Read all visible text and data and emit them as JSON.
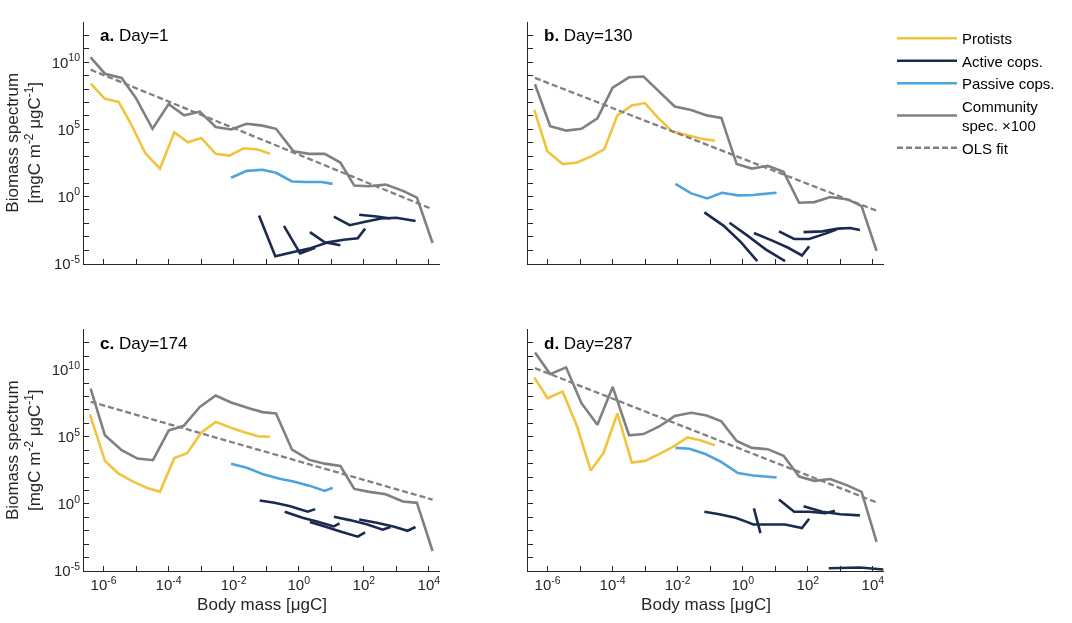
{
  "chart_data": [
    {
      "type": "line",
      "title": "a. Day=1",
      "ylabel": "Biomass spectrum\n[mgC m$^{-2}$ μgC$^{-1}$]",
      "log": "xy",
      "tick_labels": "y",
      "xlim": [
        2.5e-07,
        22000
      ],
      "ylim": [
        1e-05,
        10000000000000.0
      ],
      "xticks": [
        {
          "value": 1e-06,
          "label": "10$^{-6}$"
        },
        {
          "value": 1e-05,
          "label": null
        },
        {
          "value": 0.0001,
          "label": "10$^{-4}$"
        },
        {
          "value": 0.001,
          "label": null
        },
        {
          "value": 0.01,
          "label": "10$^{-2}$"
        },
        {
          "value": 0.1,
          "label": null
        },
        {
          "value": 1,
          "label": "10$^{0}$"
        },
        {
          "value": 10,
          "label": null
        },
        {
          "value": 100,
          "label": "10$^{2}$"
        },
        {
          "value": 1000,
          "label": null
        },
        {
          "value": 10000,
          "label": "10$^{4}$"
        }
      ],
      "yticks": [
        {
          "value": 1e-05,
          "label": "10$^{-5}$"
        },
        {
          "value": 0.0001,
          "label": null
        },
        {
          "value": 0.001,
          "label": null
        },
        {
          "value": 0.01,
          "label": null
        },
        {
          "value": 0.1,
          "label": null
        },
        {
          "value": 1,
          "label": "10$^{0}$"
        },
        {
          "value": 10,
          "label": null
        },
        {
          "value": 100,
          "label": null
        },
        {
          "value": 1000,
          "label": null
        },
        {
          "value": 10000,
          "label": null
        },
        {
          "value": 100000,
          "label": "10$^{5}$"
        },
        {
          "value": 1000000.0,
          "label": null
        },
        {
          "value": 10000000.0,
          "label": null
        },
        {
          "value": 100000000.0,
          "label": null
        },
        {
          "value": 1000000000.0,
          "label": null
        },
        {
          "value": 10000000000.0,
          "label": "10$^{10}$"
        },
        {
          "value": 100000000000.0,
          "label": null
        },
        {
          "value": 1000000000000.0,
          "label": null
        }
      ],
      "series": [
        {
          "color": "#808080",
          "x": [
            4e-07,
            1.1e-06,
            3.6e-06,
            9.8e-06,
            3.2e-05,
            0.0001,
            0.0003,
            0.00091,
            0.0028,
            0.0083,
            0.025,
            0.076,
            0.2,
            0.69,
            2.1,
            6.3,
            19,
            51,
            140,
            470,
            1600,
            4300,
            13000
          ],
          "values": [
            23000000000.0,
            1400000000.0,
            680000000.0,
            22000000.0,
            110000.0,
            7600000.0,
            1100000.0,
            2100000.0,
            150000.0,
            98000.0,
            260000.0,
            190000.0,
            110000.0,
            2300,
            1500,
            1500,
            340,
            6.5,
            5.8,
            7.6,
            2.6,
            0.81,
            0.00034
          ]
        },
        {
          "color": "#808080",
          "line_style": "dashed",
          "x": [
            4e-07,
            12000
          ],
          "values": [
            2800000000.0,
            0.12
          ]
        },
        {
          "color": "#f0c43c",
          "x": [
            4e-07,
            1.1e-06,
            2.9e-06,
            6.9e-06,
            1.9e-05,
            5.4e-05,
            0.00015,
            0.00039,
            0.001,
            0.0028,
            0.0074,
            0.02,
            0.055,
            0.13
          ],
          "values": [
            260000000.0,
            19000000.0,
            11000000.0,
            260000.0,
            1700,
            120,
            60000.0,
            11000.0,
            23000.0,
            1500,
            1100,
            3800,
            3200,
            1500
          ]
        },
        {
          "color": "#4da3db",
          "x": [
            0.0083,
            0.025,
            0.076,
            0.2,
            0.62,
            1.7,
            5.0,
            11
          ],
          "values": [
            25,
            81,
            98,
            58,
            13,
            12,
            12,
            8.7
          ]
        },
        {
          "color": "#1b2a50",
          "x": [
            0.06,
            0.19,
            0.69,
            2.1,
            7.9,
            24,
            65,
            110
          ],
          "values": [
            0.038,
            3.5e-05,
            7.2e-05,
            0.00013,
            0.00038,
            0.0006,
            0.00076,
            0.004
          ]
        },
        {
          "color": "#1b2a50",
          "x": [
            0.35,
            1.1,
            3.2
          ],
          "values": [
            0.0065,
            5.8e-05,
            0.00015
          ]
        },
        {
          "color": "#1b2a50",
          "x": [
            2.2,
            6.3,
            19
          ],
          "values": [
            0.0022,
            0.00038,
            0.00023
          ]
        },
        {
          "color": "#1b2a50",
          "x": [
            12,
            37,
            110,
            340,
            1000,
            3900
          ],
          "values": [
            0.032,
            0.0072,
            0.013,
            0.023,
            0.026,
            0.015
          ]
        },
        {
          "color": "#1b2a50",
          "x": [
            72,
            250,
            660
          ],
          "values": [
            0.043,
            0.032,
            0.023
          ]
        }
      ]
    },
    {
      "type": "line",
      "title": "b. Day=130",
      "log": "xy",
      "tick_labels": false,
      "legend": "top right",
      "xlim": [
        2.5e-07,
        22000
      ],
      "ylim": [
        1e-05,
        10000000000000.0
      ],
      "xticks": [
        {
          "value": 1e-06,
          "label": "10$^{-6}$"
        },
        {
          "value": 1e-05,
          "label": null
        },
        {
          "value": 0.0001,
          "label": "10$^{-4}$"
        },
        {
          "value": 0.001,
          "label": null
        },
        {
          "value": 0.01,
          "label": "10$^{-2}$"
        },
        {
          "value": 0.1,
          "label": null
        },
        {
          "value": 1,
          "label": "10$^{0}$"
        },
        {
          "value": 10,
          "label": null
        },
        {
          "value": 100,
          "label": "10$^{2}$"
        },
        {
          "value": 1000,
          "label": null
        },
        {
          "value": 10000,
          "label": "10$^{4}$"
        }
      ],
      "yticks": [
        {
          "value": 1e-05,
          "label": "10$^{-5}$"
        },
        {
          "value": 0.0001,
          "label": null
        },
        {
          "value": 0.001,
          "label": null
        },
        {
          "value": 0.01,
          "label": null
        },
        {
          "value": 0.1,
          "label": null
        },
        {
          "value": 1,
          "label": "10$^{0}$"
        },
        {
          "value": 10,
          "label": null
        },
        {
          "value": 100,
          "label": null
        },
        {
          "value": 1000,
          "label": null
        },
        {
          "value": 10000,
          "label": null
        },
        {
          "value": 100000,
          "label": "10$^{5}$"
        },
        {
          "value": 1000000.0,
          "label": null
        },
        {
          "value": 10000000.0,
          "label": null
        },
        {
          "value": 100000000.0,
          "label": null
        },
        {
          "value": 1000000000.0,
          "label": null
        },
        {
          "value": 10000000000.0,
          "label": "10$^{10}$"
        },
        {
          "value": 100000000000.0,
          "label": null
        },
        {
          "value": 1000000000000.0,
          "label": null
        }
      ],
      "series": [
        {
          "name": "Protists",
          "color": "#f0c43c",
          "x": [
            3.9e-07,
            9.8e-07,
            2.9e-06,
            8.1e-06,
            2.2e-05,
            5.5e-05,
            0.00014,
            0.00039,
            0.00098,
            0.0025,
            0.0069,
            0.019,
            0.05,
            0.14
          ],
          "values": [
            2800000.0,
            2300,
            260,
            340,
            980,
            3200,
            1100000.0,
            6000000.0,
            9100000.0,
            720000.0,
            68000.0,
            38000.0,
            21000.0,
            14000.0
          ]
        },
        {
          "name": "Active cops.",
          "color": "#1b2a50",
          "x": [
            0.066,
            0.26,
            0.89,
            2.8
          ],
          "values": [
            0.065,
            0.0065,
            0.00038,
            1.5e-05
          ]
        },
        {
          "color": "#1b2a50",
          "x": [
            0.39,
            1.4,
            5.2,
            20
          ],
          "values": [
            0.011,
            0.0012,
            0.00011,
            1.5e-05
          ]
        },
        {
          "color": "#1b2a50",
          "x": [
            2.2,
            8.1,
            25,
            66,
            110
          ],
          "values": [
            0.0019,
            0.00051,
            0.00015,
            4e-05,
            0.00019
          ]
        },
        {
          "color": "#1b2a50",
          "x": [
            13,
            38,
            110,
            350,
            760
          ],
          "values": [
            0.0025,
            0.00068,
            0.00068,
            0.0017,
            0.0035
          ]
        },
        {
          "color": "#1b2a50",
          "x": [
            74,
            280,
            850,
            2000,
            4000
          ],
          "values": [
            0.0022,
            0.0025,
            0.004,
            0.0045,
            0.0032
          ]
        },
        {
          "name": "Passive cops.",
          "color": "#4da3db",
          "x": [
            0.0085,
            0.026,
            0.081,
            0.23,
            0.71,
            2.1,
            11
          ],
          "values": [
            8.7,
            1.7,
            0.72,
            1.9,
            1.2,
            1.3,
            1.9
          ]
        },
        {
          "name": "Community\nspec. ×100",
          "color": "#808080",
          "x": [
            4.1e-07,
            1.2e-06,
            3.7e-06,
            1.1e-05,
            3.4e-05,
            0.0001,
            0.00032,
            0.00089,
            0.0027,
            0.0081,
            0.026,
            0.078,
            0.22,
            0.65,
            1.9,
            5.9,
            18,
            54,
            160,
            490,
            1700,
            4500,
            13000
          ],
          "values": [
            230000000.0,
            170000.0,
            81000.0,
            110000.0,
            650000.0,
            130000000.0,
            760000000.0,
            870000000.0,
            65000000.0,
            5100000.0,
            2800000.0,
            1100000.0,
            720000.0,
            260,
            120,
            190,
            68,
            0.34,
            0.38,
            0.91,
            0.6,
            0.19,
            8.7e-05
          ]
        },
        {
          "name": "OLS fit",
          "color": "#808080",
          "line_style": "dashed",
          "x": [
            4.1e-07,
            13000
          ],
          "values": [
            680000000.0,
            0.087
          ]
        }
      ]
    },
    {
      "type": "line",
      "title": "c. Day=174",
      "xlabel": "Body mass [μgC]",
      "ylabel": "Biomass spectrum\n[mgC m$^{-2}$ μgC$^{-1}$]",
      "log": "xy",
      "xlim": [
        2.5e-07,
        22000
      ],
      "ylim": [
        1e-05,
        10000000000000.0
      ],
      "xticks": [
        {
          "value": 1e-06,
          "label": "10$^{-6}$"
        },
        {
          "value": 1e-05,
          "label": null
        },
        {
          "value": 0.0001,
          "label": "10$^{-4}$"
        },
        {
          "value": 0.001,
          "label": null
        },
        {
          "value": 0.01,
          "label": "10$^{-2}$"
        },
        {
          "value": 0.1,
          "label": null
        },
        {
          "value": 1,
          "label": "10$^{0}$"
        },
        {
          "value": 10,
          "label": null
        },
        {
          "value": 100,
          "label": "10$^{2}$"
        },
        {
          "value": 1000,
          "label": null
        },
        {
          "value": 10000,
          "label": "10$^{4}$"
        }
      ],
      "yticks": [
        {
          "value": 1e-05,
          "label": "10$^{-5}$"
        },
        {
          "value": 0.0001,
          "label": null
        },
        {
          "value": 0.001,
          "label": null
        },
        {
          "value": 0.01,
          "label": null
        },
        {
          "value": 0.1,
          "label": null
        },
        {
          "value": 1,
          "label": "10$^{0}$"
        },
        {
          "value": 10,
          "label": null
        },
        {
          "value": 100,
          "label": null
        },
        {
          "value": 1000,
          "label": null
        },
        {
          "value": 10000,
          "label": null
        },
        {
          "value": 100000,
          "label": "10$^{5}$"
        },
        {
          "value": 1000000.0,
          "label": null
        },
        {
          "value": 10000000.0,
          "label": null
        },
        {
          "value": 100000000.0,
          "label": null
        },
        {
          "value": 1000000000.0,
          "label": null
        },
        {
          "value": 10000000000.0,
          "label": "10$^{10}$"
        },
        {
          "value": 100000000000.0,
          "label": null
        },
        {
          "value": 1000000000000.0,
          "label": null
        }
      ],
      "series": [
        {
          "color": "#808080",
          "x": [
            4e-07,
            1.1e-06,
            3.6e-06,
            1.1e-05,
            3.3e-05,
            0.0001,
            0.00029,
            0.00091,
            0.0028,
            0.0083,
            0.025,
            0.076,
            0.2,
            0.62,
            2.1,
            6.3,
            19,
            51,
            150,
            470,
            1600,
            4300,
            13000
          ],
          "values": [
            390000000.0,
            130000.0,
            10000.0,
            2400,
            1800,
            290000.0,
            660000.0,
            17000000.0,
            120000000.0,
            36000000.0,
            15000000.0,
            6900000.0,
            5500000.0,
            11000.0,
            1900,
            1000,
            660,
            13,
            7.9,
            5.2,
            1.5,
            1.2,
            0.00031
          ]
        },
        {
          "color": "#808080",
          "line_style": "dashed",
          "x": [
            4e-07,
            13000
          ],
          "values": [
            41000000.0,
            2.1
          ]
        },
        {
          "color": "#f0c43c",
          "x": [
            3.8e-07,
            1.1e-06,
            2.9e-06,
            7.8e-06,
            2.1e-05,
            5.4e-05,
            0.00015,
            0.00037,
            0.001,
            0.0028,
            0.0074,
            0.02,
            0.055,
            0.13
          ],
          "values": [
            4700000.0,
            1600,
            180,
            47,
            16,
            7.9,
            2600,
            5900,
            200000.0,
            1300000.0,
            520000.0,
            230000.0,
            110000.0,
            100000.0
          ]
        },
        {
          "color": "#4da3db",
          "x": [
            0.0083,
            0.025,
            0.076,
            0.26,
            0.69,
            2.1,
            6.3,
            11
          ],
          "values": [
            1000,
            490,
            170,
            74,
            46,
            23,
            9.3,
            16
          ]
        },
        {
          "color": "#1b2a50",
          "x": [
            0.063,
            0.18,
            0.55,
            1.9,
            3.2
          ],
          "values": [
            1.8,
            1.2,
            0.66,
            0.26,
            0.41
          ]
        },
        {
          "color": "#1b2a50",
          "x": [
            0.37,
            1.3,
            4.1,
            12,
            18
          ],
          "values": [
            0.26,
            0.093,
            0.044,
            0.021,
            0.035
          ]
        },
        {
          "color": "#1b2a50",
          "x": [
            2.2,
            6.3,
            19,
            65,
            110
          ],
          "values": [
            0.044,
            0.021,
            0.0089,
            0.0036,
            0.0074
          ]
        },
        {
          "color": "#1b2a50",
          "x": [
            12,
            37,
            130,
            380,
            660
          ],
          "values": [
            0.11,
            0.062,
            0.029,
            0.012,
            0.019
          ]
        },
        {
          "color": "#1b2a50",
          "x": [
            72,
            250,
            810,
            2200,
            3900
          ],
          "values": [
            0.069,
            0.039,
            0.021,
            0.01,
            0.019
          ]
        }
      ]
    },
    {
      "type": "line",
      "title": "d. Day=287",
      "xlabel": "Body mass [μgC]",
      "log": "xy",
      "tick_labels": "x",
      "xlim": [
        2.5e-07,
        22000
      ],
      "ylim": [
        1e-05,
        10000000000000.0
      ],
      "xticks": [
        {
          "value": 1e-06,
          "label": "10$^{-6}$"
        },
        {
          "value": 1e-05,
          "label": null
        },
        {
          "value": 0.0001,
          "label": "10$^{-4}$"
        },
        {
          "value": 0.001,
          "label": null
        },
        {
          "value": 0.01,
          "label": "10$^{-2}$"
        },
        {
          "value": 0.1,
          "label": null
        },
        {
          "value": 1,
          "label": "10$^{0}$"
        },
        {
          "value": 10,
          "label": null
        },
        {
          "value": 100,
          "label": "10$^{2}$"
        },
        {
          "value": 1000,
          "label": null
        },
        {
          "value": 10000,
          "label": "10$^{4}$"
        }
      ],
      "yticks": [
        {
          "value": 1e-05,
          "label": "10$^{-5}$"
        },
        {
          "value": 0.0001,
          "label": null
        },
        {
          "value": 0.001,
          "label": null
        },
        {
          "value": 0.01,
          "label": null
        },
        {
          "value": 0.1,
          "label": null
        },
        {
          "value": 1,
          "label": "10$^{0}$"
        },
        {
          "value": 10,
          "label": null
        },
        {
          "value": 100,
          "label": null
        },
        {
          "value": 1000,
          "label": null
        },
        {
          "value": 10000,
          "label": null
        },
        {
          "value": 100000,
          "label": "10$^{5}$"
        },
        {
          "value": 1000000.0,
          "label": null
        },
        {
          "value": 10000000.0,
          "label": null
        },
        {
          "value": 100000000.0,
          "label": null
        },
        {
          "value": 1000000000.0,
          "label": null
        },
        {
          "value": 10000000000.0,
          "label": "10$^{10}$"
        },
        {
          "value": 100000000000.0,
          "label": null
        },
        {
          "value": 1000000000000.0,
          "label": null
        }
      ],
      "series": [
        {
          "color": "#808080",
          "x": [
            4.1e-07,
            1.2e-06,
            3.7e-06,
            1.1e-05,
            3.4e-05,
            0.0001,
            0.00032,
            0.00089,
            0.0027,
            0.0081,
            0.026,
            0.078,
            0.22,
            0.65,
            1.9,
            5.9,
            18,
            54,
            160,
            490,
            1700,
            4500,
            13000
          ],
          "values": [
            190000000000.0,
            4700000000.0,
            15000000000.0,
            32000000.0,
            790000.0,
            520000000.0,
            130000.0,
            160000.0,
            590000.0,
            3500000.0,
            6200000.0,
            3900000.0,
            1400000.0,
            49000.0,
            15000.0,
            12000.0,
            3900,
            110,
            52,
            71,
            23,
            7.9,
            0.0015
          ]
        },
        {
          "color": "#808080",
          "line_style": "dashed",
          "x": [
            4.1e-07,
            13000
          ],
          "values": [
            13000000000.0,
            1.3
          ]
        },
        {
          "color": "#f0c43c",
          "x": [
            3.9e-07,
            1e-06,
            2.9e-06,
            8.1e-06,
            2.1e-05,
            5.2e-05,
            0.00014,
            0.00039,
            0.00098,
            0.0025,
            0.0069,
            0.02,
            0.05,
            0.14
          ],
          "values": [
            2600000000.0,
            74000000.0,
            240000000.0,
            590000.0,
            310,
            5900,
            5500000.0,
            1200,
            1600,
            4700,
            17000.0,
            89000.0,
            55000.0,
            23000.0
          ]
        },
        {
          "color": "#4da3db",
          "x": [
            0.0085,
            0.023,
            0.071,
            0.21,
            0.71,
            2.1,
            11
          ],
          "values": [
            15000.0,
            13000.0,
            5200,
            1400,
            200,
            130,
            93
          ]
        },
        {
          "color": "#1b2a50",
          "x": [
            0.066,
            0.19,
            0.6,
            1.4,
            2.1,
            6.5,
            20,
            66,
            110
          ],
          "values": [
            0.26,
            0.17,
            0.093,
            0.044,
            0.029,
            0.029,
            0.029,
            0.016,
            0.079
          ]
        },
        {
          "color": "#1b2a50",
          "x": [
            2.2,
            3.5
          ],
          "values": [
            0.47,
            0.0066
          ]
        },
        {
          "color": "#1b2a50",
          "x": [
            13,
            38,
            110,
            350,
            680
          ],
          "values": [
            2.1,
            0.26,
            0.26,
            0.2,
            0.31
          ]
        },
        {
          "color": "#1b2a50",
          "x": [
            74,
            280,
            1000,
            4000
          ],
          "values": [
            0.66,
            0.26,
            0.17,
            0.14
          ]
        },
        {
          "color": "#1b2a50",
          "x": [
            440,
            4000,
            21000
          ],
          "values": [
            1.6e-05,
            1.8e-05,
            1.3e-05
          ]
        }
      ]
    }
  ]
}
